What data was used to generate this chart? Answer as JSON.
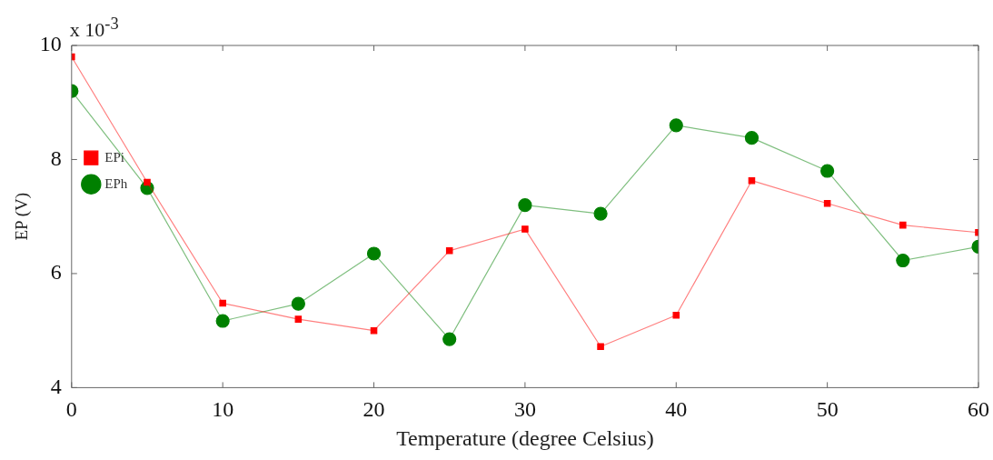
{
  "chart_data": {
    "type": "line",
    "xlabel": "Temperature (degree Celsius)",
    "ylabel": "EP (V)",
    "annotations": [
      "x 10$^{-3}$"
    ],
    "x": [
      0,
      5,
      10,
      15,
      20,
      25,
      30,
      35,
      40,
      45,
      50,
      55,
      60
    ],
    "series": [
      {
        "name": "EPh",
        "color": "#008000",
        "marker": "circle",
        "values": [
          9.2,
          7.5,
          5.17,
          5.47,
          6.35,
          4.85,
          7.2,
          7.05,
          8.6,
          8.38,
          7.8,
          6.23,
          6.47
        ]
      },
      {
        "name": "EPi",
        "color": "#ff0000",
        "marker": "square",
        "values": [
          9.8,
          7.6,
          5.48,
          5.2,
          5.0,
          6.4,
          6.78,
          4.72,
          5.27,
          7.63,
          7.23,
          6.85,
          6.72
        ]
      }
    ],
    "xlim": [
      0,
      60
    ],
    "xticks": [
      0,
      10,
      20,
      30,
      40,
      50,
      60
    ],
    "ylim": [
      4,
      10
    ],
    "yticks": [
      4,
      6,
      8,
      10
    ],
    "grid": false,
    "legend": "top",
    "line_style": "solid"
  }
}
